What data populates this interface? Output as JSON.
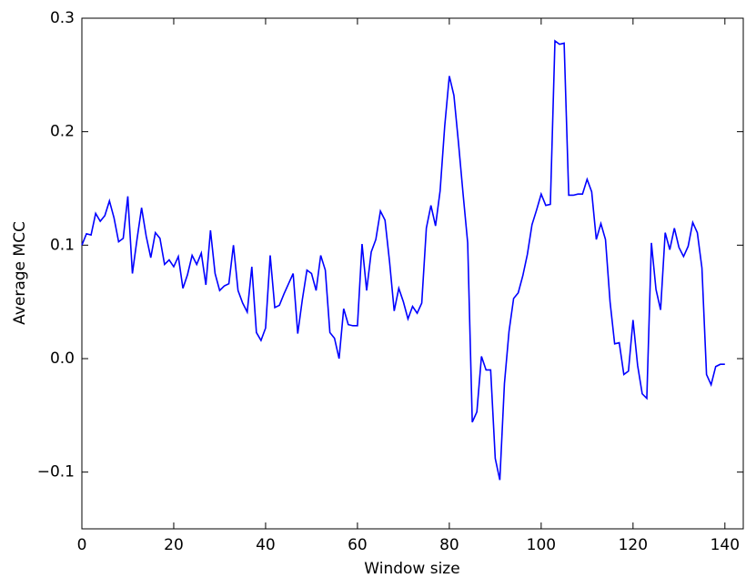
{
  "chart_data": {
    "type": "line",
    "xlabel": "Window size",
    "ylabel": "Average MCC",
    "x": [
      0,
      1,
      2,
      3,
      4,
      5,
      6,
      7,
      8,
      9,
      10,
      11,
      12,
      13,
      14,
      15,
      16,
      17,
      18,
      19,
      20,
      21,
      22,
      23,
      24,
      25,
      26,
      27,
      28,
      29,
      30,
      31,
      32,
      33,
      34,
      35,
      36,
      37,
      38,
      39,
      40,
      41,
      42,
      43,
      44,
      45,
      46,
      47,
      48,
      49,
      50,
      51,
      52,
      53,
      54,
      55,
      56,
      57,
      58,
      59,
      60,
      61,
      62,
      63,
      64,
      65,
      66,
      67,
      68,
      69,
      70,
      71,
      72,
      73,
      74,
      75,
      76,
      77,
      78,
      79,
      80,
      81,
      82,
      83,
      84,
      85,
      86,
      87,
      88,
      89,
      90,
      91,
      92,
      93,
      94,
      95,
      96,
      97,
      98,
      99,
      100,
      101,
      102,
      103,
      104,
      105,
      106,
      107,
      108,
      109,
      110,
      111,
      112,
      113,
      114,
      115,
      116,
      117,
      118,
      119,
      120,
      121,
      122,
      123,
      124,
      125,
      126,
      127,
      128,
      129,
      130,
      131,
      132,
      133,
      134,
      135,
      136,
      137,
      138,
      139,
      140
    ],
    "series": [
      {
        "color": "#0000ff",
        "values": [
          0.1,
          0.11,
          0.109,
          0.128,
          0.121,
          0.126,
          0.139,
          0.124,
          0.103,
          0.106,
          0.143,
          0.075,
          0.105,
          0.133,
          0.108,
          0.089,
          0.111,
          0.106,
          0.083,
          0.087,
          0.081,
          0.09,
          0.062,
          0.074,
          0.091,
          0.083,
          0.093,
          0.065,
          0.113,
          0.075,
          0.06,
          0.064,
          0.066,
          0.1,
          0.06,
          0.049,
          0.041,
          0.081,
          0.023,
          0.016,
          0.027,
          0.091,
          0.045,
          0.047,
          0.057,
          0.066,
          0.075,
          0.022,
          0.052,
          0.078,
          0.075,
          0.06,
          0.091,
          0.078,
          0.023,
          0.018,
          0.0,
          0.044,
          0.03,
          0.029,
          0.029,
          0.101,
          0.06,
          0.094,
          0.105,
          0.13,
          0.122,
          0.085,
          0.042,
          0.062,
          0.05,
          0.035,
          0.046,
          0.04,
          0.049,
          0.115,
          0.135,
          0.117,
          0.148,
          0.205,
          0.249,
          0.232,
          0.19,
          0.145,
          0.102,
          -0.056,
          -0.047,
          0.002,
          -0.01,
          -0.01,
          -0.088,
          -0.107,
          -0.022,
          0.024,
          0.053,
          0.058,
          0.073,
          0.092,
          0.118,
          0.131,
          0.145,
          0.135,
          0.136,
          0.28,
          0.277,
          0.278,
          0.144,
          0.144,
          0.145,
          0.145,
          0.158,
          0.147,
          0.105,
          0.119,
          0.105,
          0.05,
          0.013,
          0.014,
          -0.014,
          -0.011,
          0.034,
          -0.006,
          -0.031,
          -0.035,
          0.102,
          0.061,
          0.043,
          0.111,
          0.096,
          0.115,
          0.098,
          0.09,
          0.099,
          0.12,
          0.111,
          0.08,
          -0.014,
          -0.023,
          -0.007,
          -0.005,
          -0.005
        ]
      }
    ],
    "xlim": [
      0,
      144
    ],
    "xticks": [
      0,
      20,
      40,
      60,
      80,
      100,
      120,
      140
    ],
    "ylim": [
      -0.15,
      0.3
    ],
    "yticks": [
      {
        "value": -0.1,
        "label": "−0.1"
      },
      {
        "value": 0.0,
        "label": "0.0"
      },
      0.1,
      0.2,
      0.3
    ],
    "grid": false
  }
}
